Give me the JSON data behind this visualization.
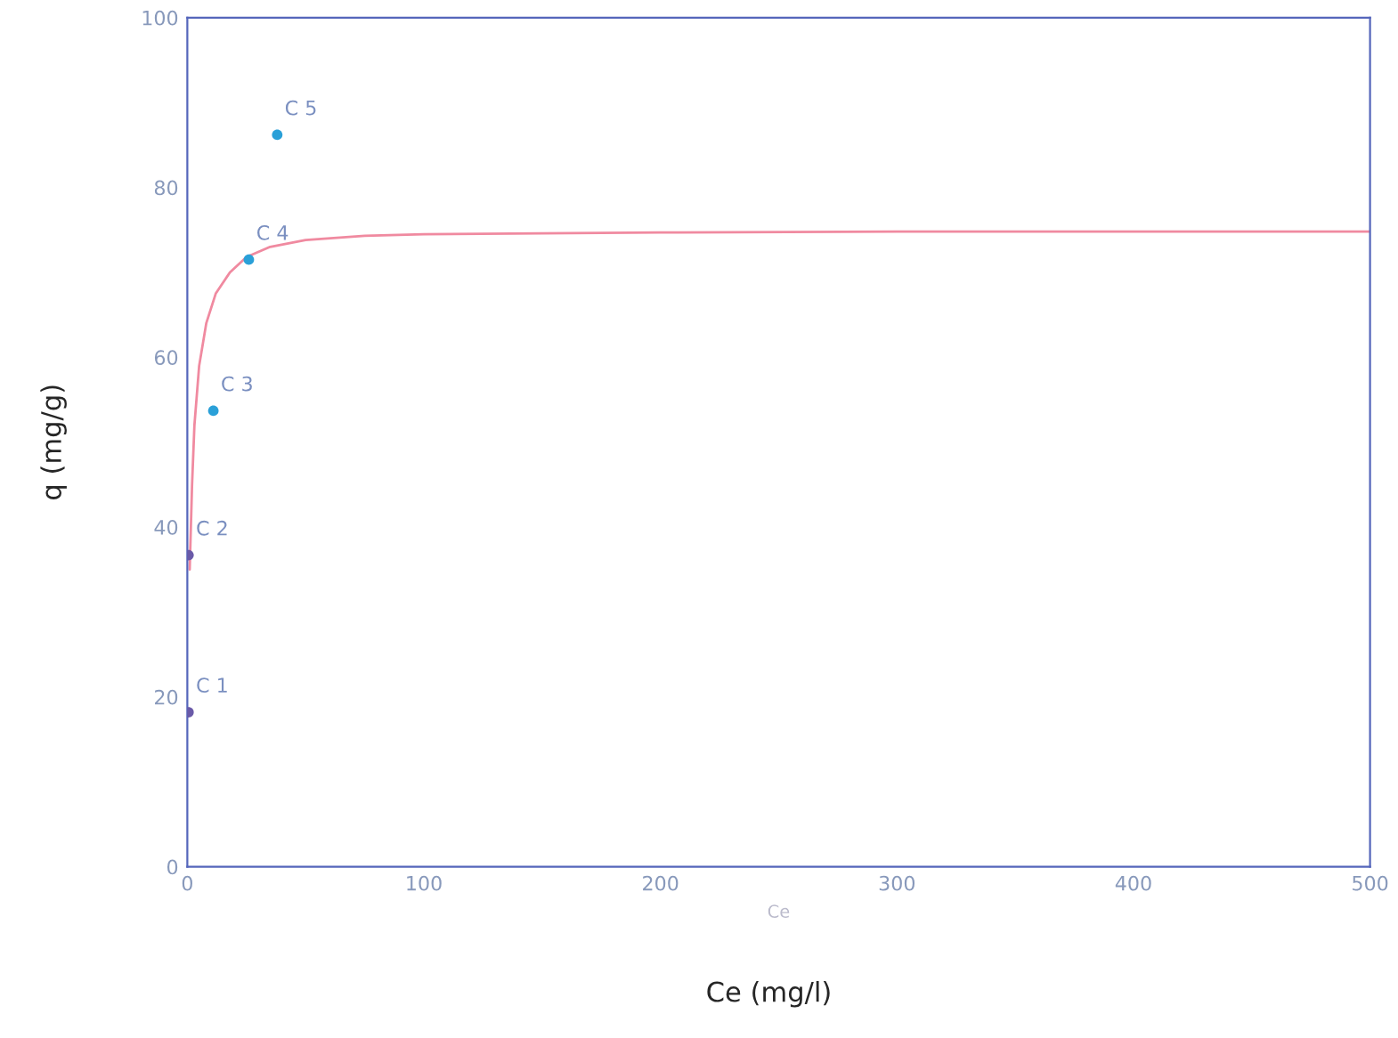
{
  "chart_data": {
    "type": "scatter",
    "xlabel": "Ce",
    "ylabel": "q (mg/g)",
    "xlim": [
      0,
      500
    ],
    "ylim": [
      0,
      100
    ],
    "xticks": [
      0,
      100,
      200,
      300,
      400,
      500
    ],
    "yticks": [
      0,
      20,
      40,
      60,
      80,
      100
    ],
    "grid": false,
    "legend": false,
    "series": [
      {
        "type": "line",
        "color": "#f08aa0",
        "x": [
          1,
          2,
          3,
          5,
          8,
          12,
          18,
          25,
          35,
          50,
          75,
          100,
          200,
          300,
          400,
          500
        ],
        "values": [
          35,
          45,
          52,
          59,
          64,
          67.5,
          70,
          71.8,
          73,
          73.8,
          74.3,
          74.5,
          74.7,
          74.8,
          74.8,
          74.8
        ]
      },
      {
        "marker": "circle",
        "colors": [
          "#6a5aa8",
          "#6a5aa8",
          "#2aa0d8",
          "#2aa0d8",
          "#2aa0d8"
        ],
        "x": [
          0.5,
          0.5,
          11,
          26,
          38
        ],
        "values": [
          18.2,
          36.7,
          53.7,
          71.5,
          86.2
        ]
      }
    ],
    "annotations": [
      {
        "text": "C 1",
        "x": 0.5,
        "y": 18.2
      },
      {
        "text": "C 2",
        "x": 0.5,
        "y": 36.7
      },
      {
        "text": "C 3",
        "x": 11,
        "y": 53.7
      },
      {
        "text": "C 4",
        "x": 26,
        "y": 71.5
      },
      {
        "text": "C 5",
        "x": 38,
        "y": 86.2
      },
      "Ce (mg/l)"
    ]
  }
}
